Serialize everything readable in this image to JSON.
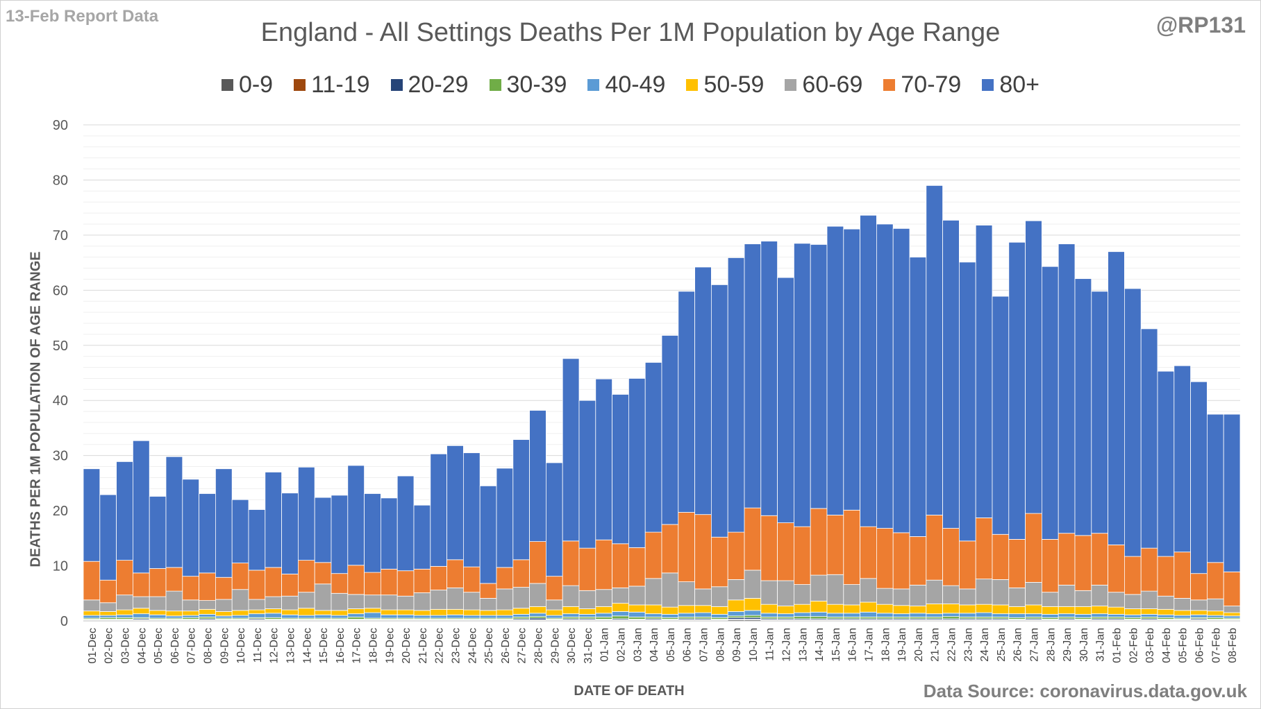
{
  "header": {
    "report_label": "13-Feb Report Data",
    "author_handle": "@RP131"
  },
  "footer": {
    "source": "Data Source: coronavirus.data.gov.uk"
  },
  "chart_data": {
    "type": "bar",
    "stacked": true,
    "title": "England - All Settings Deaths Per 1M Population by Age Range",
    "xlabel": "DATE OF DEATH",
    "ylabel": "DEATHS PER 1M POPULATION OF AGE RANGE",
    "ylim": [
      0,
      90
    ],
    "yticks": [
      0,
      10,
      20,
      30,
      40,
      50,
      60,
      70,
      80,
      90
    ],
    "grid": true,
    "legend_position": "top",
    "colors": {
      "0-9": "#595959",
      "11-19": "#9e480e",
      "20-29": "#264478",
      "30-39": "#70ad47",
      "40-49": "#5b9bd5",
      "50-59": "#ffc000",
      "60-69": "#a5a5a5",
      "70-79": "#ed7d31",
      "80+": "#4472c4"
    },
    "categories": [
      "01-Dec",
      "02-Dec",
      "03-Dec",
      "04-Dec",
      "05-Dec",
      "06-Dec",
      "07-Dec",
      "08-Dec",
      "09-Dec",
      "10-Dec",
      "11-Dec",
      "12-Dec",
      "13-Dec",
      "14-Dec",
      "15-Dec",
      "16-Dec",
      "17-Dec",
      "18-Dec",
      "19-Dec",
      "20-Dec",
      "21-Dec",
      "22-Dec",
      "23-Dec",
      "24-Dec",
      "25-Dec",
      "26-Dec",
      "27-Dec",
      "28-Dec",
      "29-Dec",
      "30-Dec",
      "31-Dec",
      "01-Jan",
      "02-Jan",
      "03-Jan",
      "04-Jan",
      "05-Jan",
      "06-Jan",
      "07-Jan",
      "08-Jan",
      "09-Jan",
      "10-Jan",
      "11-Jan",
      "12-Jan",
      "13-Jan",
      "14-Jan",
      "15-Jan",
      "16-Jan",
      "17-Jan",
      "18-Jan",
      "19-Jan",
      "20-Jan",
      "21-Jan",
      "22-Jan",
      "23-Jan",
      "24-Jan",
      "25-Jan",
      "26-Jan",
      "27-Jan",
      "28-Jan",
      "29-Jan",
      "30-Jan",
      "31-Jan",
      "01-Feb",
      "02-Feb",
      "03-Feb",
      "04-Feb",
      "05-Feb",
      "06-Feb",
      "07-Feb",
      "08-Feb"
    ],
    "series": [
      {
        "name": "0-9",
        "values": [
          0.1,
          0.1,
          0.1,
          0.1,
          0.1,
          0.1,
          0.1,
          0.1,
          0.1,
          0.1,
          0.1,
          0.1,
          0.1,
          0.1,
          0.1,
          0.1,
          0.1,
          0.1,
          0.1,
          0.1,
          0.1,
          0.1,
          0.1,
          0.1,
          0.1,
          0.1,
          0.1,
          0.1,
          0.1,
          0.1,
          0.1,
          0.1,
          0.1,
          0.1,
          0.1,
          0.1,
          0.1,
          0.1,
          0.1,
          0.2,
          0.2,
          0.1,
          0.1,
          0.1,
          0.1,
          0.1,
          0.1,
          0.1,
          0.1,
          0.1,
          0.1,
          0.1,
          0.1,
          0.1,
          0.1,
          0.1,
          0.1,
          0.1,
          0.1,
          0.1,
          0.1,
          0.1,
          0.1,
          0.1,
          0.1,
          0.1,
          0.1,
          0.1,
          0.1,
          0.1
        ]
      },
      {
        "name": "11-19",
        "values": [
          0.1,
          0.1,
          0.1,
          0.1,
          0.1,
          0.1,
          0.1,
          0.1,
          0.1,
          0.1,
          0.1,
          0.1,
          0.1,
          0.1,
          0.1,
          0.1,
          0.1,
          0.1,
          0.1,
          0.1,
          0.1,
          0.1,
          0.1,
          0.1,
          0.1,
          0.1,
          0.1,
          0.1,
          0.1,
          0.1,
          0.1,
          0.1,
          0.1,
          0.1,
          0.1,
          0.1,
          0.1,
          0.1,
          0.1,
          0.1,
          0.1,
          0.1,
          0.1,
          0.1,
          0.1,
          0.1,
          0.1,
          0.1,
          0.1,
          0.1,
          0.1,
          0.1,
          0.1,
          0.1,
          0.1,
          0.1,
          0.1,
          0.1,
          0.1,
          0.1,
          0.1,
          0.1,
          0.1,
          0.1,
          0.1,
          0.1,
          0.1,
          0.1,
          0.1,
          0.1
        ]
      },
      {
        "name": "20-29",
        "values": [
          0.1,
          0.1,
          0.1,
          0.2,
          0.1,
          0.1,
          0.1,
          0.2,
          0.1,
          0.1,
          0.2,
          0.1,
          0.1,
          0.1,
          0.1,
          0.1,
          0.1,
          0.1,
          0.1,
          0.1,
          0.1,
          0.1,
          0.1,
          0.1,
          0.1,
          0.1,
          0.2,
          0.3,
          0.1,
          0.2,
          0.2,
          0.1,
          0.2,
          0.1,
          0.2,
          0.1,
          0.2,
          0.2,
          0.1,
          0.3,
          0.3,
          0.2,
          0.2,
          0.2,
          0.2,
          0.2,
          0.2,
          0.2,
          0.2,
          0.2,
          0.2,
          0.2,
          0.2,
          0.2,
          0.2,
          0.2,
          0.1,
          0.2,
          0.1,
          0.2,
          0.1,
          0.2,
          0.2,
          0.1,
          0.2,
          0.1,
          0.1,
          0.2,
          0.1,
          0.1
        ]
      },
      {
        "name": "30-39",
        "values": [
          0.2,
          0.3,
          0.3,
          0.2,
          0.2,
          0.2,
          0.3,
          0.3,
          0.2,
          0.2,
          0.2,
          0.3,
          0.2,
          0.2,
          0.2,
          0.2,
          0.4,
          0.2,
          0.2,
          0.2,
          0.2,
          0.2,
          0.2,
          0.2,
          0.2,
          0.2,
          0.3,
          0.3,
          0.2,
          0.3,
          0.3,
          0.4,
          0.5,
          0.4,
          0.3,
          0.3,
          0.3,
          0.3,
          0.3,
          0.3,
          0.4,
          0.3,
          0.3,
          0.4,
          0.4,
          0.3,
          0.3,
          0.3,
          0.3,
          0.3,
          0.3,
          0.3,
          0.4,
          0.3,
          0.3,
          0.3,
          0.3,
          0.3,
          0.3,
          0.3,
          0.3,
          0.3,
          0.3,
          0.3,
          0.3,
          0.3,
          0.2,
          0.2,
          0.3,
          0.2
        ]
      },
      {
        "name": "40-49",
        "values": [
          0.5,
          0.4,
          0.5,
          0.7,
          0.6,
          0.4,
          0.4,
          0.5,
          0.4,
          0.5,
          0.7,
          0.8,
          0.6,
          0.5,
          0.6,
          0.5,
          0.6,
          1.0,
          0.6,
          0.6,
          0.5,
          0.5,
          0.6,
          0.5,
          0.5,
          0.5,
          0.5,
          0.6,
          0.5,
          0.6,
          0.5,
          0.7,
          0.8,
          0.9,
          0.6,
          0.6,
          0.7,
          0.8,
          0.6,
          0.8,
          0.9,
          0.7,
          0.6,
          0.7,
          0.8,
          0.7,
          0.7,
          0.9,
          0.7,
          0.6,
          0.7,
          0.6,
          0.6,
          0.7,
          0.8,
          0.6,
          0.7,
          0.6,
          0.6,
          0.6,
          0.6,
          0.6,
          0.5,
          0.5,
          0.5,
          0.5,
          0.5,
          0.5,
          0.4,
          0.4
        ]
      },
      {
        "name": "50-59",
        "values": [
          0.8,
          0.7,
          0.9,
          1.0,
          0.8,
          0.9,
          0.8,
          0.9,
          0.8,
          0.9,
          0.7,
          0.8,
          0.9,
          1.3,
          0.8,
          0.9,
          0.9,
          0.8,
          0.9,
          0.9,
          0.9,
          1.1,
          1.0,
          1.0,
          0.9,
          1.0,
          1.1,
          1.2,
          1.0,
          1.3,
          1.0,
          1.2,
          1.5,
          1.3,
          1.6,
          1.3,
          1.4,
          1.3,
          1.4,
          2.1,
          2.2,
          1.6,
          1.4,
          1.5,
          2.0,
          1.6,
          1.5,
          1.8,
          1.6,
          1.5,
          1.3,
          1.8,
          1.7,
          1.5,
          1.5,
          1.6,
          1.3,
          1.6,
          1.4,
          1.3,
          1.4,
          1.4,
          1.3,
          1.1,
          1.0,
          1.0,
          0.9,
          0.8,
          0.8,
          0.6
        ]
      },
      {
        "name": "60-69",
        "values": [
          2.0,
          1.6,
          2.7,
          2.1,
          2.5,
          3.6,
          2.0,
          1.6,
          2.2,
          3.8,
          1.9,
          2.2,
          2.5,
          2.9,
          4.8,
          3.1,
          2.6,
          2.4,
          2.7,
          2.5,
          3.2,
          3.5,
          3.9,
          3.2,
          2.2,
          3.8,
          3.8,
          4.2,
          1.8,
          3.8,
          3.3,
          3.1,
          2.8,
          3.4,
          4.8,
          6.2,
          4.3,
          3.0,
          3.6,
          3.7,
          5.1,
          4.3,
          4.6,
          3.6,
          4.7,
          5.4,
          3.7,
          4.3,
          2.9,
          3.0,
          3.8,
          4.3,
          3.3,
          2.9,
          4.6,
          4.6,
          3.4,
          4.1,
          2.6,
          3.9,
          2.9,
          3.8,
          2.7,
          2.6,
          3.2,
          2.4,
          2.2,
          1.9,
          2.2,
          1.2
        ]
      },
      {
        "name": "70-79",
        "values": [
          7.0,
          4.1,
          6.3,
          4.3,
          5.1,
          4.3,
          4.3,
          5.0,
          4.0,
          4.8,
          5.3,
          5.3,
          4.0,
          5.8,
          3.9,
          3.6,
          5.3,
          4.1,
          4.7,
          4.6,
          4.3,
          4.3,
          5.1,
          4.6,
          2.7,
          3.9,
          5.0,
          7.6,
          4.3,
          8.1,
          7.7,
          9.0,
          8.0,
          7.0,
          8.4,
          8.8,
          12.6,
          13.5,
          9.0,
          8.6,
          11.3,
          11.8,
          10.5,
          10.5,
          12.1,
          10.8,
          13.5,
          9.4,
          10.9,
          10.2,
          8.8,
          11.8,
          10.4,
          8.7,
          11.1,
          8.2,
          8.8,
          12.5,
          9.6,
          9.4,
          10.0,
          9.4,
          8.6,
          6.9,
          7.8,
          7.2,
          8.4,
          4.8,
          6.6,
          6.2
        ]
      },
      {
        "name": "80+",
        "values": [
          16.8,
          15.5,
          17.9,
          24.0,
          13.1,
          20.1,
          17.6,
          14.4,
          19.7,
          11.5,
          11.0,
          17.3,
          14.7,
          16.9,
          11.8,
          14.2,
          18.1,
          14.3,
          12.9,
          17.2,
          11.6,
          20.4,
          20.7,
          20.7,
          17.7,
          18.0,
          21.8,
          23.8,
          20.6,
          33.1,
          26.8,
          29.2,
          27.1,
          30.7,
          30.8,
          34.3,
          40.1,
          44.9,
          45.8,
          49.8,
          47.9,
          49.8,
          44.5,
          51.4,
          47.9,
          52.4,
          51.0,
          56.5,
          55.2,
          55.2,
          50.7,
          59.8,
          55.9,
          50.6,
          53.1,
          43.2,
          53.9,
          53.1,
          49.5,
          52.5,
          46.6,
          43.9,
          53.2,
          48.6,
          39.8,
          33.6,
          33.8,
          34.8,
          26.9,
          28.6
        ]
      }
    ]
  }
}
